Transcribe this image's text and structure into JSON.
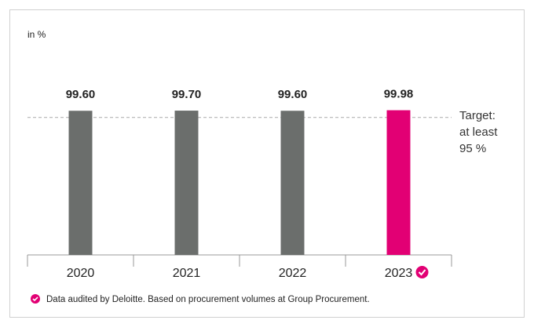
{
  "chart_data": {
    "type": "bar",
    "axis_label": "in %",
    "categories": [
      "2020",
      "2021",
      "2022",
      "2023"
    ],
    "values": [
      99.6,
      99.7,
      99.6,
      99.98
    ],
    "value_labels": [
      "99.60",
      "99.70",
      "99.60",
      "99.98"
    ],
    "colors": [
      "#6b6e6c",
      "#6b6e6c",
      "#6b6e6c",
      "#e20074"
    ],
    "ylim": [
      0,
      100
    ],
    "target": 95,
    "target_label": "Target: at least 95 %",
    "footnote": "Data audited by Deloitte. Based on procurement volumes at Group Procurement."
  }
}
